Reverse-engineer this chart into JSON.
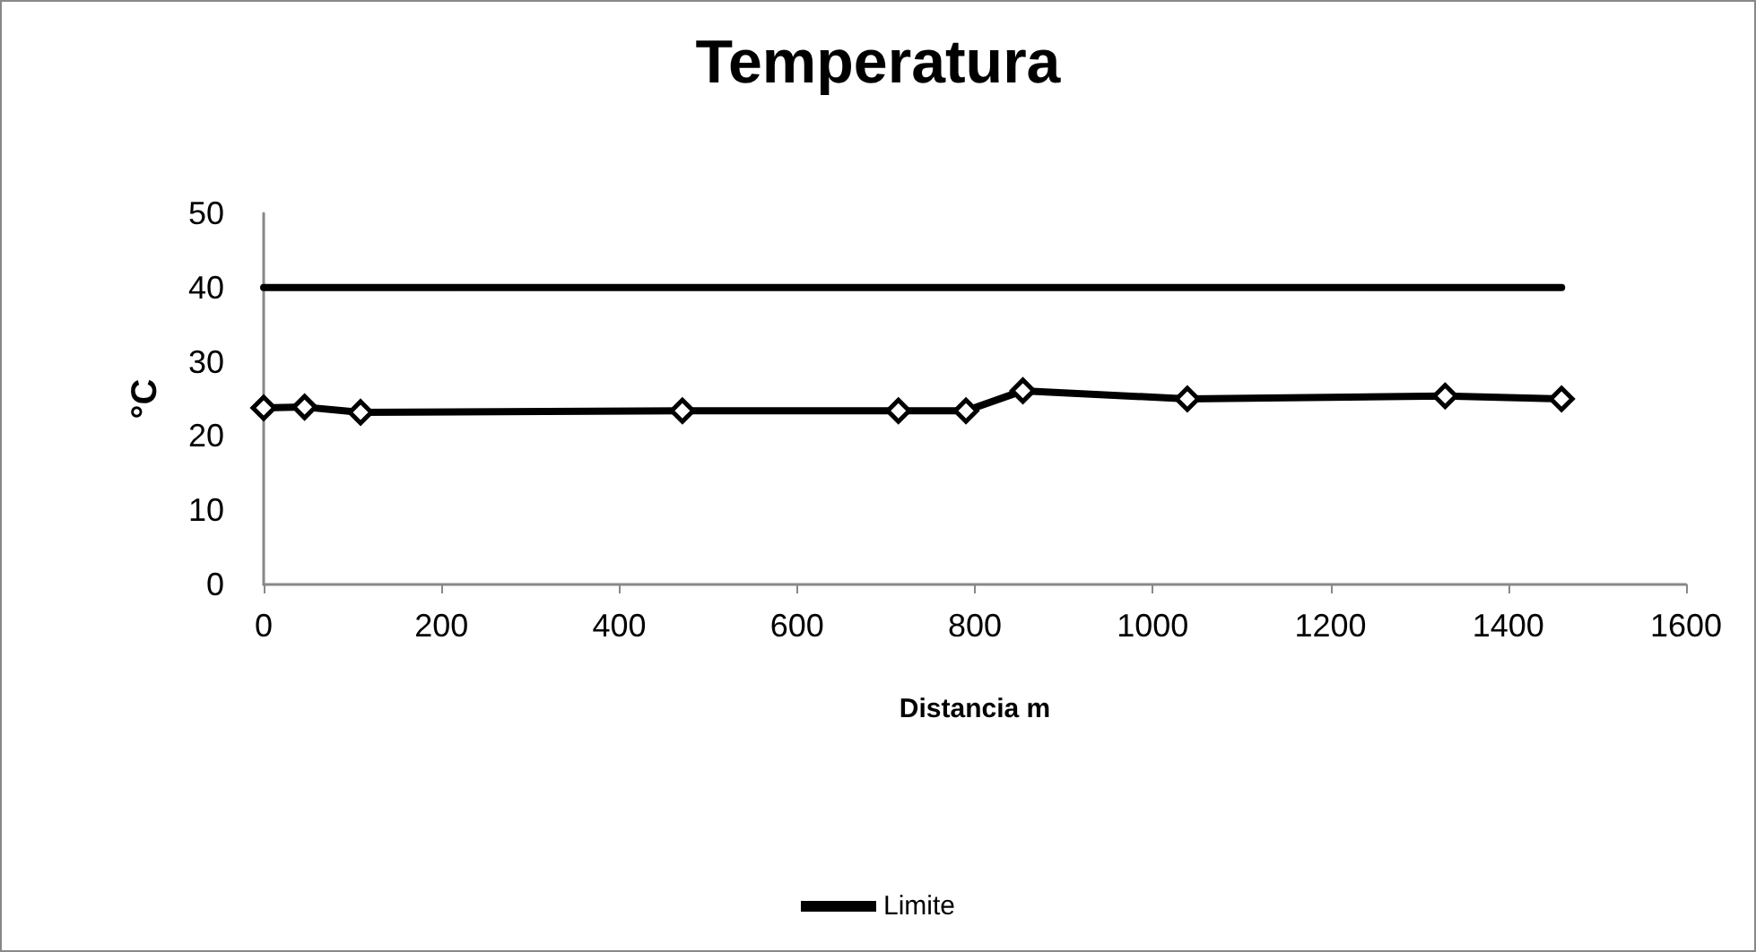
{
  "chart_data": {
    "type": "line",
    "title": "Temperatura",
    "xlabel": "Distancia m",
    "ylabel": "°C",
    "xlim": [
      0,
      1600
    ],
    "xticks": [
      0,
      200,
      400,
      600,
      800,
      1000,
      1200,
      1400,
      1600
    ],
    "ylim": [
      0,
      50
    ],
    "yticks": [
      0,
      10,
      20,
      30,
      40,
      50
    ],
    "grid": false,
    "legend": "bottom",
    "line_style": "solid",
    "series": [
      {
        "color": "#000000",
        "marker": "diamond",
        "x": [
          0,
          46,
          109,
          471,
          714,
          790,
          854,
          1039,
          1329,
          1460
        ],
        "values": [
          23.8,
          23.9,
          23.2,
          23.4,
          23.4,
          23.4,
          26.1,
          25.0,
          25.4,
          25.0
        ]
      },
      {
        "name": "Limite",
        "color": "#000000",
        "marker": "none",
        "x": [
          0,
          1460
        ],
        "values": [
          40,
          40
        ]
      }
    ]
  }
}
